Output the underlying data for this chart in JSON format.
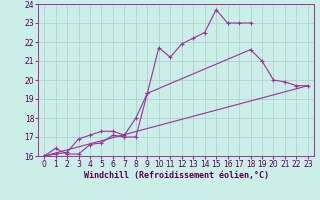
{
  "xlabel": "Windchill (Refroidissement éolien,°C)",
  "bg_color": "#cceee8",
  "line_color": "#993399",
  "grid_color": "#aacccc",
  "xlim": [
    -0.5,
    23.5
  ],
  "ylim": [
    16,
    24
  ],
  "xticks": [
    0,
    1,
    2,
    3,
    4,
    5,
    6,
    7,
    8,
    9,
    10,
    11,
    12,
    13,
    14,
    15,
    16,
    17,
    18,
    19,
    20,
    21,
    22,
    23
  ],
  "yticks": [
    16,
    17,
    18,
    19,
    20,
    21,
    22,
    23,
    24
  ],
  "curve1_x": [
    0,
    1,
    2,
    3,
    4,
    5,
    6,
    7,
    8,
    9,
    10,
    11,
    12,
    13,
    14,
    15,
    16,
    17,
    18
  ],
  "curve1_y": [
    16.0,
    16.4,
    16.1,
    16.1,
    16.6,
    16.7,
    17.1,
    17.0,
    17.0,
    19.3,
    21.7,
    21.2,
    21.9,
    22.2,
    22.5,
    23.7,
    23.0,
    23.0,
    23.0
  ],
  "curve2_x": [
    0,
    1,
    2,
    3,
    4,
    5,
    6,
    7,
    8,
    9,
    18,
    19,
    20,
    21,
    22,
    23
  ],
  "curve2_y": [
    16.0,
    16.1,
    16.2,
    16.9,
    17.1,
    17.3,
    17.3,
    17.1,
    18.0,
    19.3,
    21.6,
    21.0,
    20.0,
    19.9,
    19.7,
    19.7
  ],
  "curve3_x": [
    0,
    23
  ],
  "curve3_y": [
    16.0,
    19.7
  ],
  "tick_fontsize": 5.5,
  "xlabel_fontsize": 6.0
}
